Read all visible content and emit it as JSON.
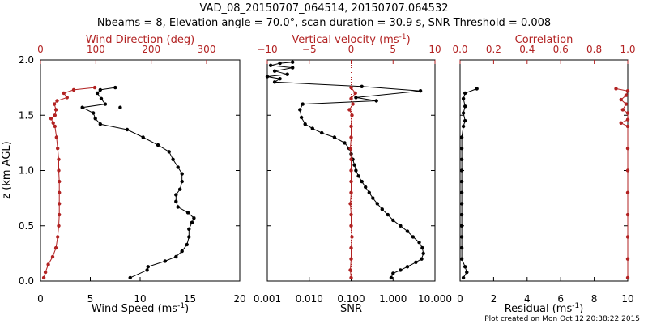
{
  "title_line1": "VAD_08_20150707_064514, 20150707.064532",
  "title_line2": "Nbeams = 8, Elevation angle = 70.0°, scan duration = 30.9 s, SNR Threshold = 0.008",
  "footer": "Plot created on Mon Oct 12 20:38:22 2015",
  "colors": {
    "primary": "#000000",
    "secondary": "#b22222"
  },
  "chart_data": [
    {
      "type": "line",
      "name": "wind-panel",
      "ylabel": "z (km AGL)",
      "ylim": [
        0,
        2
      ],
      "yticks": [
        0.0,
        0.5,
        1.0,
        1.5,
        2.0
      ],
      "ytick_labels": [
        "0.0",
        "0.5",
        "1.0",
        "1.5",
        "2.0"
      ],
      "x_bottom": {
        "label": "Wind Speed",
        "unit": "(ms",
        "unit_exp": "-1",
        "unit_close": ")",
        "lim": [
          0,
          20
        ],
        "ticks": [
          0,
          5,
          10,
          15,
          20
        ],
        "tick_labels": [
          "0",
          "5",
          "10",
          "15",
          "20"
        ]
      },
      "x_top": {
        "label": "Wind Direction (deg)",
        "lim": [
          0,
          360
        ],
        "ticks": [
          0,
          100,
          200,
          300
        ],
        "tick_labels": [
          "0",
          "100",
          "200",
          "300"
        ]
      },
      "series": [
        {
          "name": "Wind Speed",
          "axis": "bottom",
          "color": "#000000",
          "points": [
            [
              9.0,
              0.03
            ],
            [
              10.7,
              0.1
            ],
            [
              10.8,
              0.13
            ],
            [
              12.5,
              0.18
            ],
            [
              13.6,
              0.22
            ],
            [
              14.2,
              0.27
            ],
            [
              14.7,
              0.33
            ],
            [
              14.9,
              0.4
            ],
            [
              14.9,
              0.47
            ],
            [
              15.2,
              0.53
            ],
            [
              15.4,
              0.57
            ],
            [
              14.8,
              0.62
            ],
            [
              13.8,
              0.67
            ],
            [
              13.6,
              0.72
            ],
            [
              13.6,
              0.78
            ],
            [
              14.0,
              0.83
            ],
            [
              14.2,
              0.9
            ],
            [
              14.2,
              0.97
            ],
            [
              13.8,
              1.03
            ],
            [
              13.3,
              1.1
            ],
            [
              12.9,
              1.17
            ],
            [
              11.8,
              1.23
            ],
            [
              10.3,
              1.3
            ],
            [
              8.7,
              1.37
            ],
            [
              6.0,
              1.42
            ],
            [
              5.5,
              1.47
            ],
            [
              5.3,
              1.52
            ],
            [
              4.2,
              1.57
            ],
            [
              6.5,
              1.6
            ],
            [
              6.1,
              1.65
            ],
            [
              5.7,
              1.7
            ],
            [
              6.0,
              1.73
            ],
            [
              7.5,
              1.75
            ]
          ],
          "isolated": [
            [
              8.0,
              1.57
            ]
          ]
        },
        {
          "name": "Wind Direction",
          "axis": "top",
          "color": "#b22222",
          "points": [
            [
              6,
              0.03
            ],
            [
              9,
              0.08
            ],
            [
              14,
              0.15
            ],
            [
              22,
              0.22
            ],
            [
              28,
              0.3
            ],
            [
              31,
              0.4
            ],
            [
              33,
              0.5
            ],
            [
              34,
              0.6
            ],
            [
              34,
              0.7
            ],
            [
              34,
              0.8
            ],
            [
              34,
              0.9
            ],
            [
              33,
              1.0
            ],
            [
              33,
              1.1
            ],
            [
              31,
              1.2
            ],
            [
              29,
              1.3
            ],
            [
              26,
              1.4
            ],
            [
              23,
              1.43
            ],
            [
              19,
              1.47
            ],
            [
              26,
              1.5
            ],
            [
              28,
              1.55
            ],
            [
              25,
              1.6
            ],
            [
              30,
              1.63
            ],
            [
              48,
              1.66
            ],
            [
              42,
              1.7
            ],
            [
              60,
              1.73
            ],
            [
              98,
              1.75
            ]
          ]
        }
      ]
    },
    {
      "type": "line",
      "name": "velocity-panel",
      "ylim": [
        0,
        2
      ],
      "x_bottom": {
        "label": "SNR",
        "scale": "log",
        "lim": [
          0.001,
          10
        ],
        "ticks": [
          0.001,
          0.01,
          0.1,
          1,
          10
        ],
        "tick_labels": [
          "0.001",
          "0.010",
          "0.100",
          "1.000",
          "10.000"
        ]
      },
      "x_top": {
        "label": "Vertical velocity",
        "unit": "(ms",
        "unit_exp": "-1",
        "unit_close": ")",
        "lim": [
          -10,
          10
        ],
        "ticks": [
          -10,
          -5,
          0,
          5,
          10
        ],
        "tick_labels": [
          "−10",
          "−5",
          "0",
          "5",
          "10"
        ]
      },
      "zero_line": 0,
      "series": [
        {
          "name": "SNR",
          "axis": "bottom",
          "color": "#000000",
          "points": [
            [
              0.9,
              0.03
            ],
            [
              1.0,
              0.07
            ],
            [
              1.5,
              0.1
            ],
            [
              2.2,
              0.13
            ],
            [
              3.5,
              0.17
            ],
            [
              4.8,
              0.2
            ],
            [
              5.3,
              0.25
            ],
            [
              5.0,
              0.3
            ],
            [
              4.2,
              0.35
            ],
            [
              3.0,
              0.4
            ],
            [
              2.2,
              0.45
            ],
            [
              1.5,
              0.5
            ],
            [
              1.0,
              0.55
            ],
            [
              0.75,
              0.6
            ],
            [
              0.55,
              0.65
            ],
            [
              0.42,
              0.7
            ],
            [
              0.33,
              0.75
            ],
            [
              0.27,
              0.8
            ],
            [
              0.22,
              0.85
            ],
            [
              0.18,
              0.9
            ],
            [
              0.15,
              0.95
            ],
            [
              0.13,
              1.0
            ],
            [
              0.12,
              1.05
            ],
            [
              0.11,
              1.1
            ],
            [
              0.1,
              1.15
            ],
            [
              0.09,
              1.2
            ],
            [
              0.07,
              1.25
            ],
            [
              0.04,
              1.3
            ],
            [
              0.02,
              1.34
            ],
            [
              0.012,
              1.38
            ],
            [
              0.008,
              1.42
            ],
            [
              0.0065,
              1.48
            ],
            [
              0.006,
              1.55
            ],
            [
              0.007,
              1.6
            ],
            [
              0.4,
              1.63
            ],
            [
              0.13,
              1.66
            ],
            [
              4.5,
              1.72
            ],
            [
              0.18,
              1.76
            ],
            [
              0.0015,
              1.8
            ],
            [
              0.002,
              1.83
            ],
            [
              0.001,
              1.85
            ],
            [
              0.003,
              1.87
            ],
            [
              0.0015,
              1.9
            ],
            [
              0.004,
              1.93
            ],
            [
              0.0012,
              1.95
            ],
            [
              0.002,
              1.97
            ],
            [
              0.004,
              1.98
            ]
          ]
        },
        {
          "name": "Vertical velocity",
          "axis": "top",
          "color": "#b22222",
          "points": [
            [
              0.0,
              0.03
            ],
            [
              -0.1,
              0.1
            ],
            [
              0.0,
              0.2
            ],
            [
              0.0,
              0.3
            ],
            [
              0.1,
              0.4
            ],
            [
              0.0,
              0.5
            ],
            [
              0.0,
              0.6
            ],
            [
              -0.1,
              0.7
            ],
            [
              0.0,
              0.8
            ],
            [
              0.0,
              0.9
            ],
            [
              0.0,
              1.0
            ],
            [
              0.0,
              1.1
            ],
            [
              -0.1,
              1.2
            ],
            [
              0.0,
              1.3
            ],
            [
              0.0,
              1.4
            ],
            [
              0.1,
              1.5
            ],
            [
              -0.2,
              1.55
            ],
            [
              0.2,
              1.6
            ],
            [
              0.0,
              1.65
            ],
            [
              0.5,
              1.7
            ],
            [
              0.0,
              1.75
            ]
          ]
        }
      ]
    },
    {
      "type": "line",
      "name": "correlation-panel",
      "ylim": [
        0,
        2
      ],
      "x_bottom": {
        "label": "Residual",
        "unit": "(ms",
        "unit_exp": "-1",
        "unit_close": ")",
        "lim": [
          0,
          10
        ],
        "ticks": [
          0,
          2,
          4,
          6,
          8,
          10
        ],
        "tick_labels": [
          "0",
          "2",
          "4",
          "6",
          "8",
          "10"
        ]
      },
      "x_top": {
        "label": "Correlation",
        "lim": [
          0,
          1
        ],
        "ticks": [
          0,
          0.2,
          0.4,
          0.6,
          0.8,
          1.0
        ],
        "tick_labels": [
          "0.0",
          "0.2",
          "0.4",
          "0.6",
          "0.8",
          "1.0"
        ]
      },
      "series": [
        {
          "name": "Residual",
          "axis": "bottom",
          "color": "#000000",
          "points": [
            [
              0.2,
              0.03
            ],
            [
              0.4,
              0.08
            ],
            [
              0.3,
              0.13
            ],
            [
              0.1,
              0.2
            ],
            [
              0.1,
              0.3
            ],
            [
              0.1,
              0.4
            ],
            [
              0.1,
              0.5
            ],
            [
              0.1,
              0.6
            ],
            [
              0.1,
              0.7
            ],
            [
              0.1,
              0.8
            ],
            [
              0.1,
              0.9
            ],
            [
              0.1,
              1.0
            ],
            [
              0.1,
              1.1
            ],
            [
              0.1,
              1.2
            ],
            [
              0.1,
              1.3
            ],
            [
              0.2,
              1.4
            ],
            [
              0.3,
              1.45
            ],
            [
              0.2,
              1.52
            ],
            [
              0.3,
              1.58
            ],
            [
              0.2,
              1.65
            ],
            [
              0.3,
              1.7
            ],
            [
              1.0,
              1.74
            ]
          ]
        },
        {
          "name": "Correlation",
          "axis": "top",
          "color": "#b22222",
          "points": [
            [
              1.0,
              0.03
            ],
            [
              1.0,
              0.2
            ],
            [
              1.0,
              0.4
            ],
            [
              1.0,
              0.6
            ],
            [
              1.0,
              0.8
            ],
            [
              1.0,
              1.0
            ],
            [
              1.0,
              1.2
            ],
            [
              1.0,
              1.4
            ],
            [
              0.96,
              1.43
            ],
            [
              1.0,
              1.46
            ],
            [
              1.0,
              1.52
            ],
            [
              0.97,
              1.55
            ],
            [
              0.99,
              1.6
            ],
            [
              0.96,
              1.64
            ],
            [
              0.99,
              1.68
            ],
            [
              1.0,
              1.72
            ],
            [
              0.93,
              1.74
            ]
          ]
        }
      ]
    }
  ]
}
